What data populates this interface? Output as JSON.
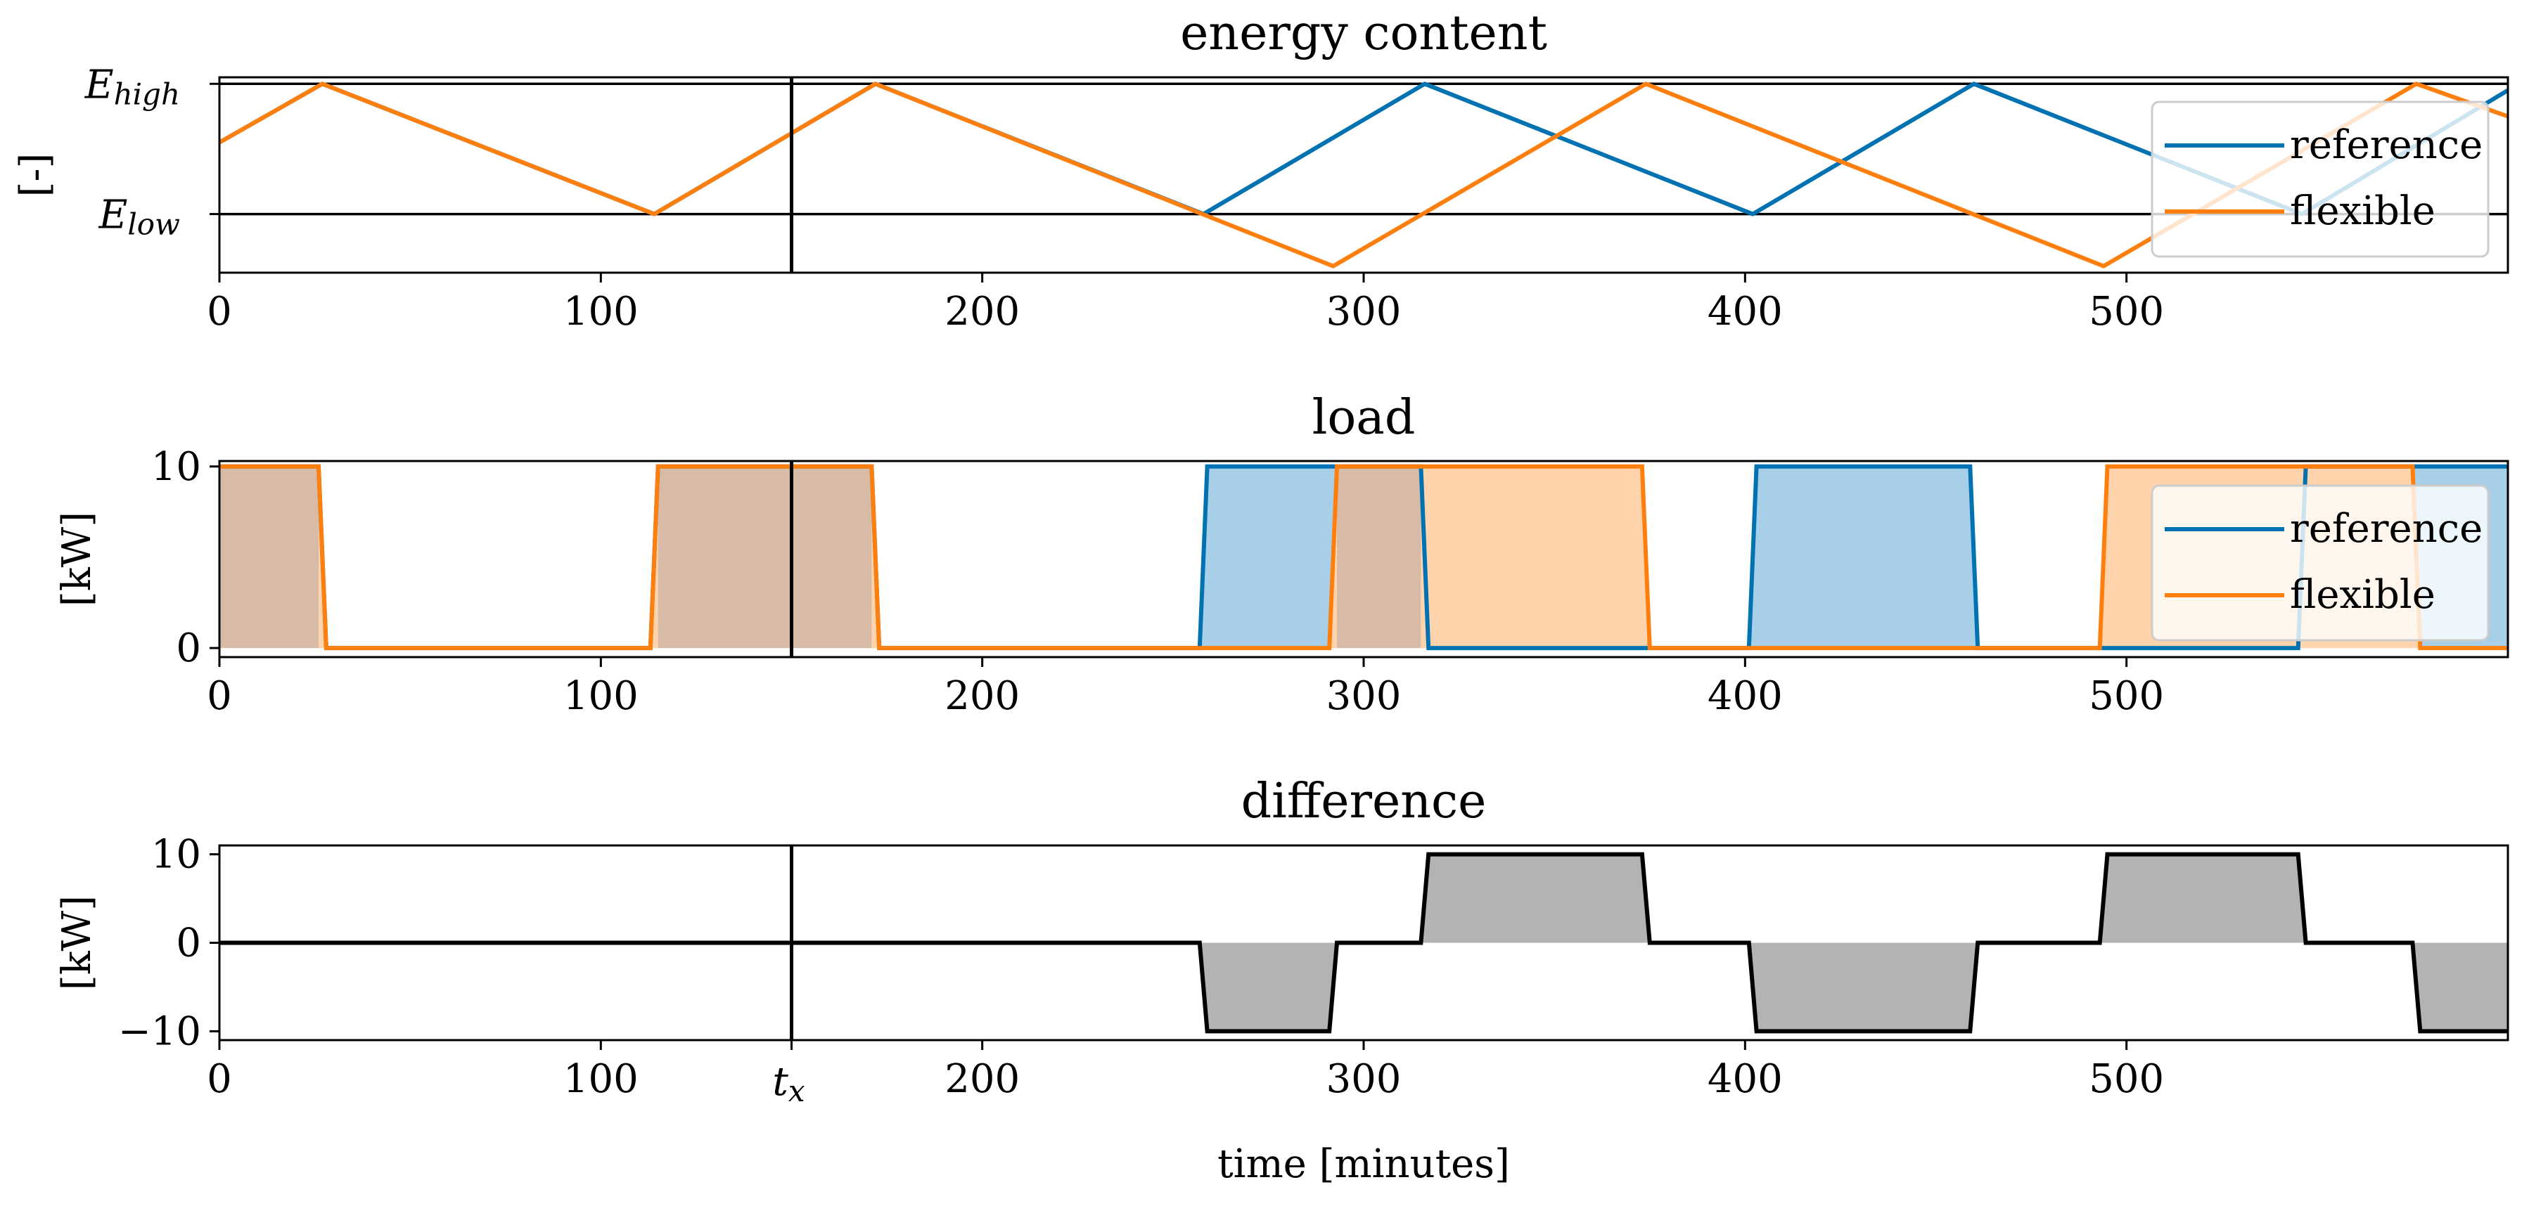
{
  "chart_data": [
    {
      "type": "line",
      "title": "energy content",
      "ylabel": "[-]",
      "xlabel": "",
      "xlim": [
        0,
        600
      ],
      "ylim": [
        -0.45,
        1.05
      ],
      "x_ticks": [
        0,
        100,
        200,
        300,
        400,
        500
      ],
      "y_ticks": [
        {
          "value": 1,
          "main": "E",
          "sub": "high"
        },
        {
          "value": 0,
          "main": "E",
          "sub": "low"
        }
      ],
      "hlines": [
        1,
        0
      ],
      "vline_x": 150,
      "legend": {
        "position": "upper-right",
        "entries": [
          "reference",
          "flexible"
        ]
      },
      "colors": {
        "reference": "#0072b2",
        "flexible": "#ff7f0e",
        "reference_fill": "#a7d0e8",
        "flexible_fill": "#ffd3ab",
        "overlap_fill": "#d8bba6",
        "diff_fill": "#b3b3b3",
        "axis": "#000000"
      },
      "series": [
        {
          "name": "reference",
          "x": [
            0,
            27,
            114,
            172,
            258,
            316,
            402,
            460,
            546,
            600
          ],
          "y": [
            0.55,
            1,
            0,
            1,
            0,
            1,
            0,
            1,
            0,
            0.95
          ]
        },
        {
          "name": "flexible",
          "x": [
            0,
            27,
            114,
            172,
            292,
            374,
            494,
            576,
            600
          ],
          "y": [
            0.55,
            1,
            0,
            1,
            -0.4,
            1,
            -0.4,
            1,
            0.75
          ]
        }
      ]
    },
    {
      "type": "area",
      "title": "load",
      "ylabel": "[kW]",
      "xlabel": "",
      "xlim": [
        0,
        600
      ],
      "ylim": [
        -0.5,
        10.3
      ],
      "x_ticks": [
        0,
        100,
        200,
        300,
        400,
        500
      ],
      "y_ticks": [
        0,
        10
      ],
      "vline_x": 150,
      "legend": {
        "position": "upper-right",
        "entries": [
          "reference",
          "flexible"
        ]
      },
      "series": [
        {
          "name": "reference",
          "x": [
            0,
            26,
            28,
            113,
            115,
            171,
            173,
            257,
            259,
            315,
            317,
            401,
            403,
            459,
            461,
            545,
            547,
            600
          ],
          "y": [
            10,
            10,
            0,
            0,
            10,
            10,
            0,
            0,
            10,
            10,
            0,
            0,
            10,
            10,
            0,
            0,
            10,
            10
          ]
        },
        {
          "name": "flexible",
          "x": [
            0,
            26,
            28,
            113,
            115,
            171,
            173,
            291,
            293,
            373,
            375,
            493,
            495,
            575,
            577,
            600
          ],
          "y": [
            10,
            10,
            0,
            0,
            10,
            10,
            0,
            0,
            10,
            10,
            0,
            0,
            10,
            10,
            0,
            0
          ]
        }
      ]
    },
    {
      "type": "area",
      "title": "difference",
      "ylabel": "[kW]",
      "xlabel": "time [minutes]",
      "xlim": [
        0,
        600
      ],
      "ylim": [
        -11,
        11
      ],
      "x_ticks": [
        0,
        100,
        200,
        300,
        400,
        500
      ],
      "special_x_tick": {
        "value": 150,
        "main": "t",
        "sub": "x"
      },
      "y_ticks": [
        10,
        0,
        -10
      ],
      "vline_x": 150,
      "series": [
        {
          "name": "difference",
          "x": [
            0,
            257,
            259,
            291,
            293,
            315,
            317,
            373,
            375,
            401,
            403,
            459,
            461,
            493,
            495,
            545,
            547,
            575,
            577,
            600
          ],
          "y": [
            0,
            0,
            -10,
            -10,
            0,
            0,
            10,
            10,
            0,
            0,
            -10,
            -10,
            0,
            0,
            10,
            10,
            0,
            0,
            -10,
            -10
          ]
        }
      ]
    }
  ]
}
